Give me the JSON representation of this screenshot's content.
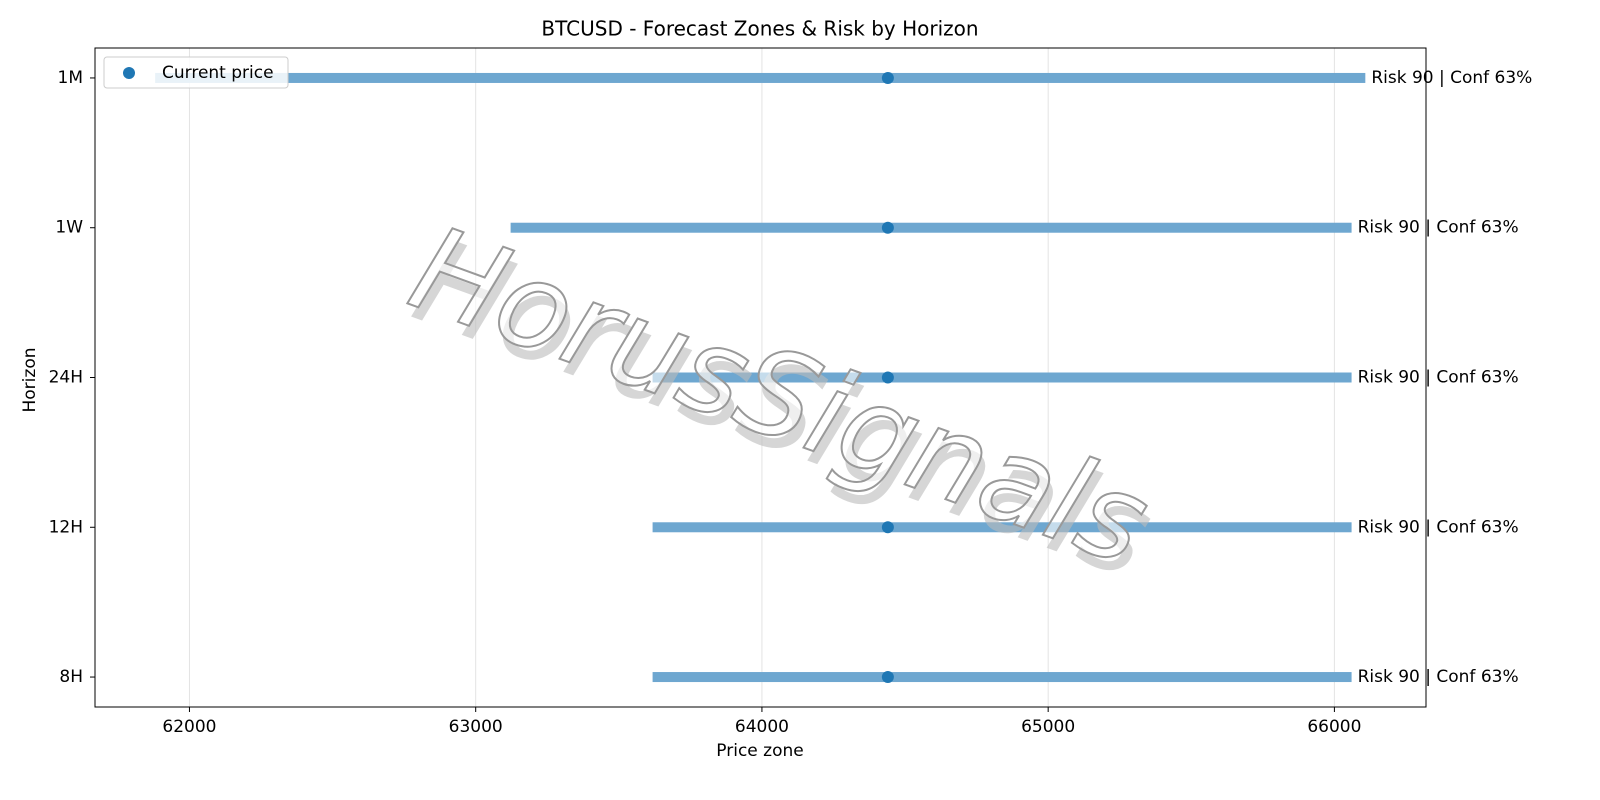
{
  "chart_data": {
    "type": "range",
    "title": "BTCUSD - Forecast Zones & Risk by Horizon",
    "xlabel": "Price zone",
    "ylabel": "Horizon",
    "categories": [
      "8H",
      "12H",
      "24H",
      "1W",
      "1M"
    ],
    "low": [
      63618,
      63618,
      63618,
      63122,
      61880
    ],
    "high": [
      66060,
      66060,
      66060,
      66060,
      66108
    ],
    "current": [
      64440,
      64440,
      64440,
      64440,
      64440
    ],
    "current_name": "Current price",
    "annotations": [
      "Risk 90 | Conf 63%",
      "Risk 90 | Conf 63%",
      "Risk 90 | Conf 63%",
      "Risk 90 | Conf 63%",
      "Risk 90 | Conf 63%"
    ],
    "bar_color": "#6ea7d0",
    "point_color": "#1f77b4",
    "xlim": [
      61670,
      66320
    ],
    "xticks": [
      62000,
      63000,
      64000,
      65000,
      66000
    ],
    "ylim": [
      -0.2,
      4.2
    ],
    "grid": true,
    "legend": "upper left",
    "watermark": "HorusSignals"
  }
}
